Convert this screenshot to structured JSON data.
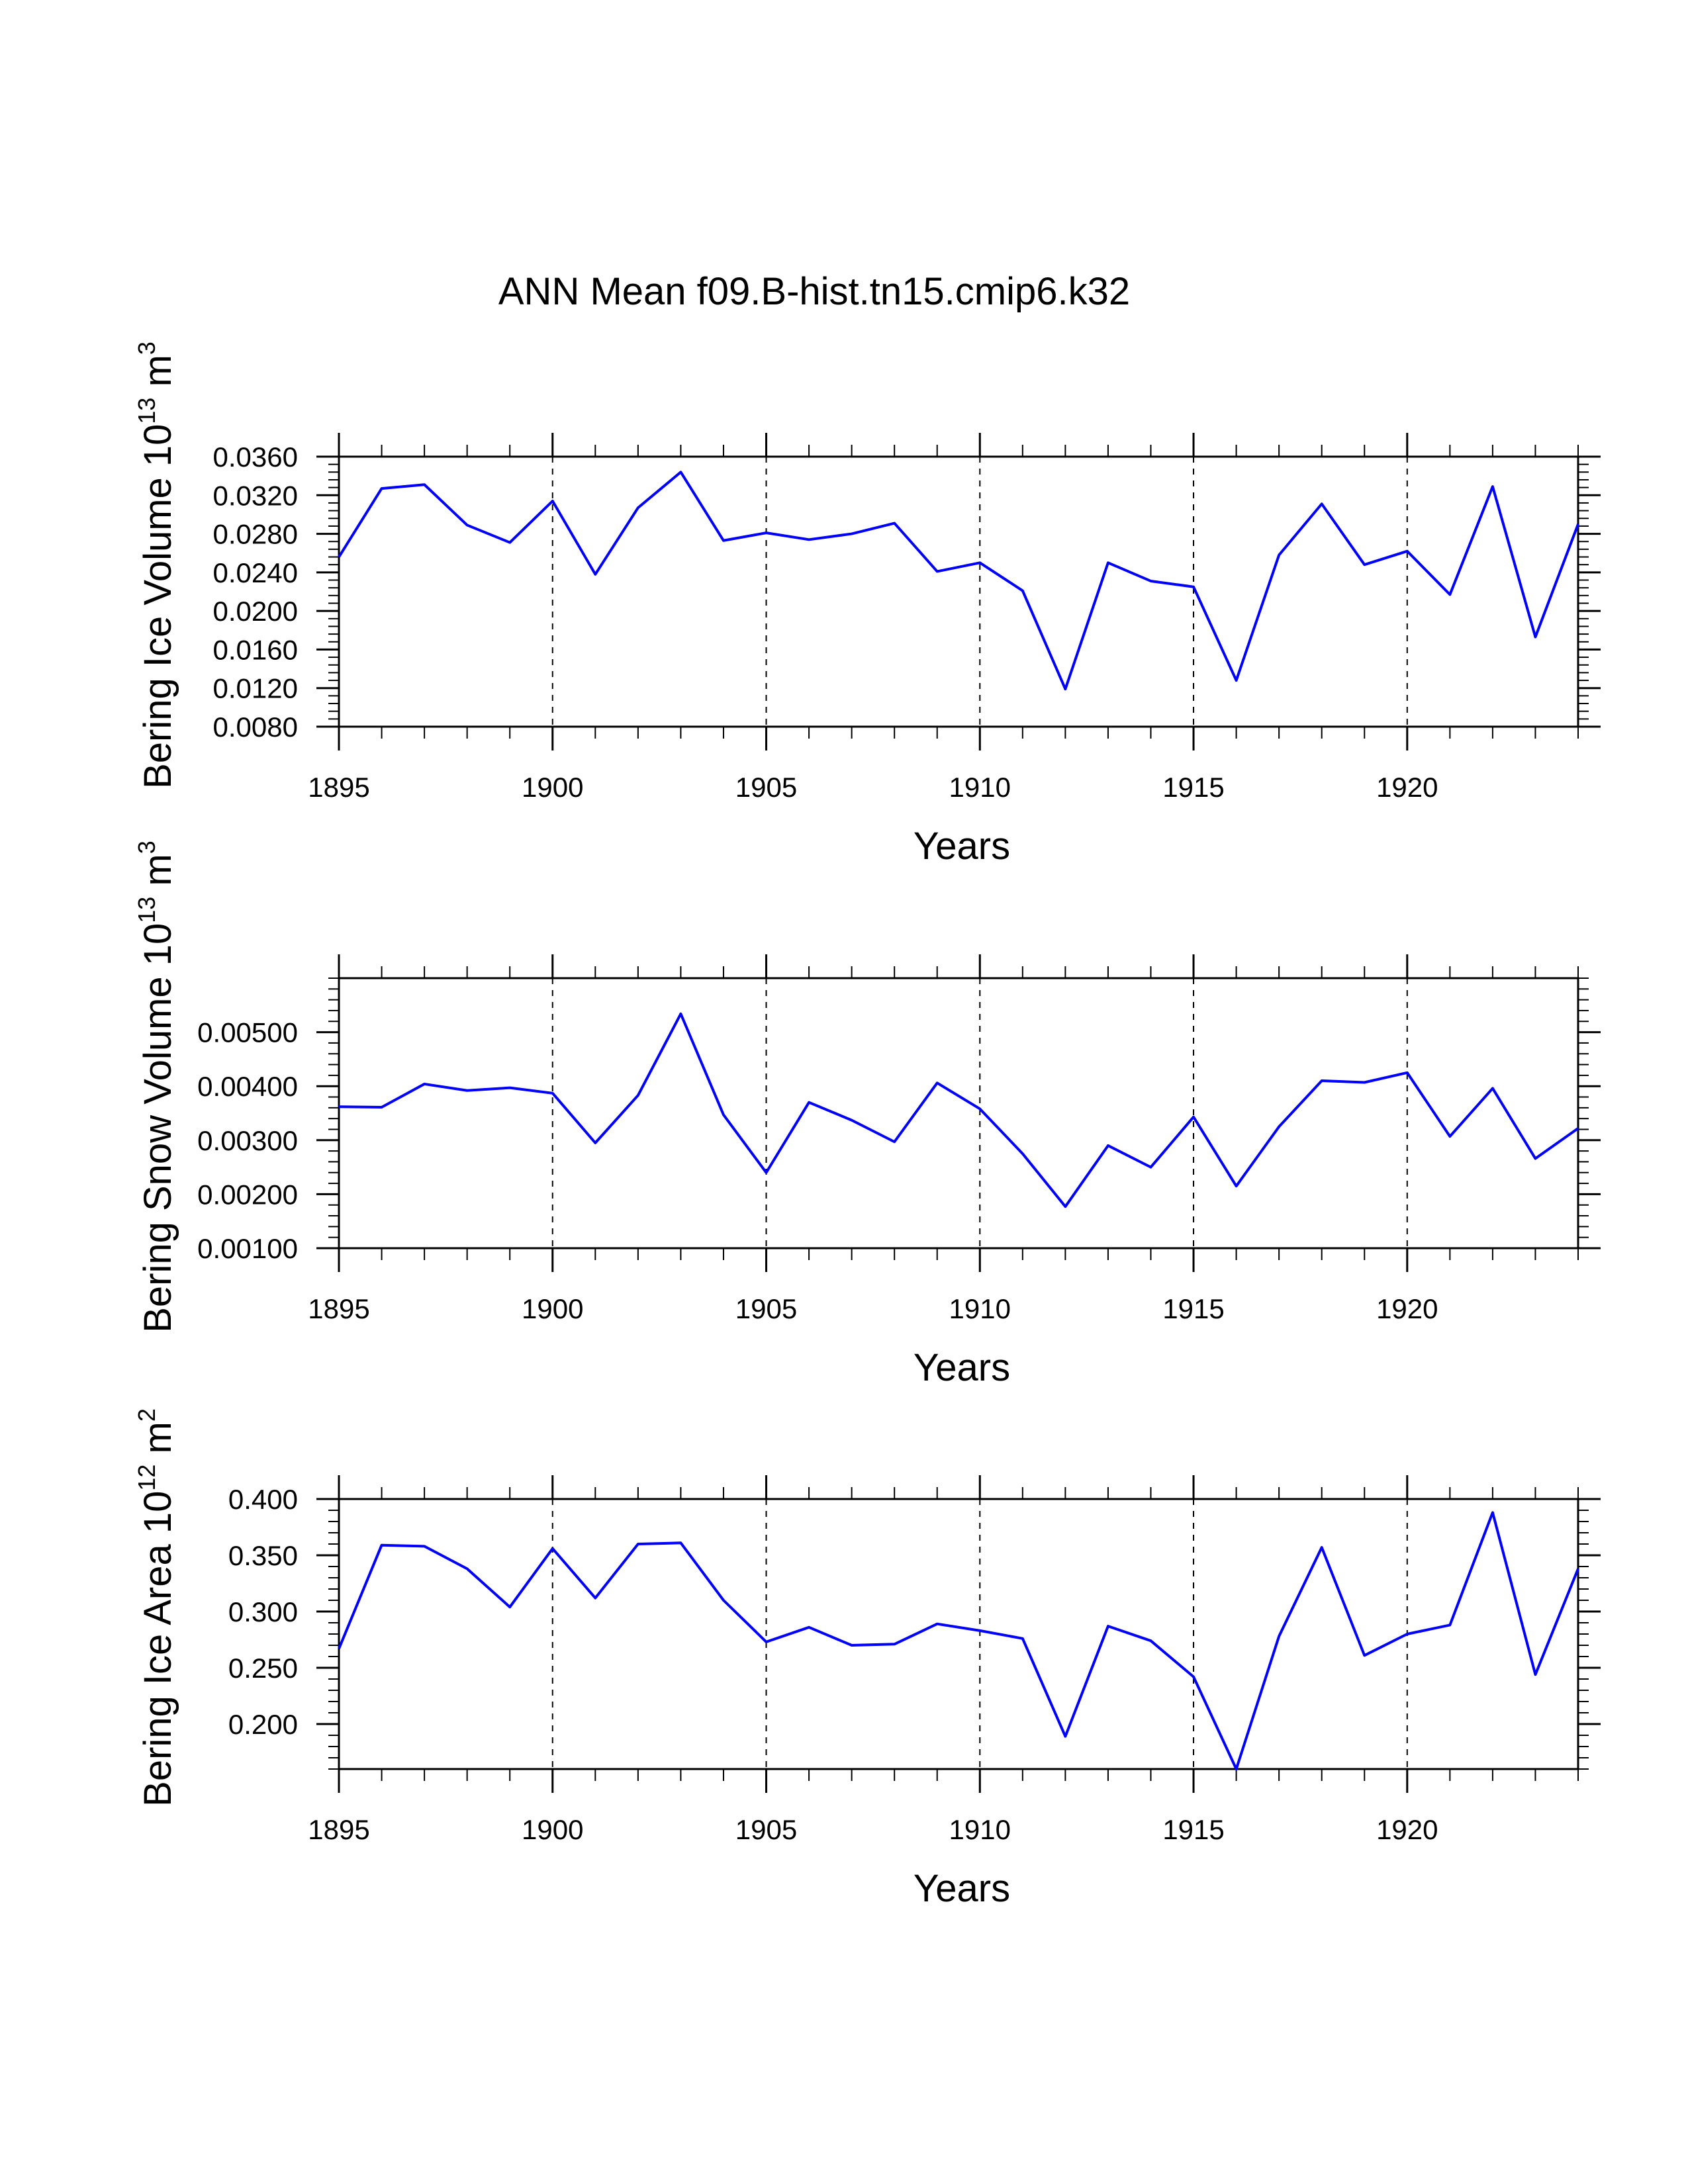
{
  "figure_title": "ANN Mean f09.B-hist.tn15.cmip6.k32",
  "colors": {
    "line": "#0000ff",
    "axes": "#000000",
    "grid": "#000000"
  },
  "chart_data": [
    {
      "type": "line",
      "id": "ice-volume",
      "ylabel": {
        "text": "Bering Ice Volume 10",
        "exponent": "13",
        "unit": " m",
        "unit_exponent": "3"
      },
      "xlabel": "Years",
      "xlim": [
        1895,
        1924
      ],
      "ylim": [
        0.008,
        0.036
      ],
      "x_ticks": [
        1895,
        1900,
        1905,
        1910,
        1915,
        1920
      ],
      "x_tick_labels": [
        "1895",
        "1900",
        "1905",
        "1910",
        "1915",
        "1920"
      ],
      "y_ticks": [
        0.008,
        0.012,
        0.016,
        0.02,
        0.024,
        0.028,
        0.032,
        0.036
      ],
      "y_tick_labels": [
        "0.0080",
        "0.0120",
        "0.0160",
        "0.0200",
        "0.0240",
        "0.0280",
        "0.0320",
        "0.0360"
      ],
      "grid_x": [
        1900,
        1905,
        1910,
        1915,
        1920
      ],
      "x": [
        1895,
        1896,
        1897,
        1898,
        1899,
        1900,
        1901,
        1902,
        1903,
        1904,
        1905,
        1906,
        1907,
        1908,
        1909,
        1910,
        1911,
        1912,
        1913,
        1914,
        1915,
        1916,
        1917,
        1918,
        1919,
        1920,
        1921,
        1922,
        1923,
        1924
      ],
      "series": [
        {
          "name": "Bering Ice Volume",
          "values": [
            0.0256,
            0.0327,
            0.0331,
            0.0289,
            0.0271,
            0.0314,
            0.0238,
            0.0307,
            0.0344,
            0.0273,
            0.0281,
            0.0274,
            0.028,
            0.0291,
            0.0241,
            0.025,
            0.0221,
            0.0119,
            0.025,
            0.0231,
            0.0225,
            0.0128,
            0.0258,
            0.0311,
            0.0248,
            0.0262,
            0.0217,
            0.0329,
            0.0173,
            0.029
          ]
        }
      ]
    },
    {
      "type": "line",
      "id": "snow-volume",
      "ylabel": {
        "text": "Bering Snow Volume 10",
        "exponent": "13",
        "unit": " m",
        "unit_exponent": "3"
      },
      "xlabel": "Years",
      "xlim": [
        1895,
        1924
      ],
      "ylim": [
        0.001,
        0.006
      ],
      "x_ticks": [
        1895,
        1900,
        1905,
        1910,
        1915,
        1920
      ],
      "x_tick_labels": [
        "1895",
        "1900",
        "1905",
        "1910",
        "1915",
        "1920"
      ],
      "y_ticks": [
        0.001,
        0.002,
        0.003,
        0.004,
        0.005
      ],
      "y_tick_labels": [
        "0.00100",
        "0.00200",
        "0.00300",
        "0.00400",
        "0.00500"
      ],
      "grid_x": [
        1900,
        1905,
        1910,
        1915,
        1920
      ],
      "x": [
        1895,
        1896,
        1897,
        1898,
        1899,
        1900,
        1901,
        1902,
        1903,
        1904,
        1905,
        1906,
        1907,
        1908,
        1909,
        1910,
        1911,
        1912,
        1913,
        1914,
        1915,
        1916,
        1917,
        1918,
        1919,
        1920,
        1921,
        1922,
        1923,
        1924
      ],
      "series": [
        {
          "name": "Bering Snow Volume",
          "values": [
            0.00362,
            0.00361,
            0.00404,
            0.00392,
            0.00397,
            0.00387,
            0.00295,
            0.00383,
            0.00534,
            0.00347,
            0.0024,
            0.0037,
            0.00337,
            0.00297,
            0.00406,
            0.00358,
            0.00275,
            0.00177,
            0.0029,
            0.0025,
            0.00343,
            0.00215,
            0.00325,
            0.0041,
            0.00407,
            0.00425,
            0.00307,
            0.00396,
            0.00266,
            0.00322
          ]
        }
      ]
    },
    {
      "type": "line",
      "id": "ice-area",
      "ylabel": {
        "text": "Bering Ice Area 10",
        "exponent": "12",
        "unit": " m",
        "unit_exponent": "2"
      },
      "xlabel": "Years",
      "xlim": [
        1895,
        1924
      ],
      "ylim": [
        0.16,
        0.4
      ],
      "x_ticks": [
        1895,
        1900,
        1905,
        1910,
        1915,
        1920
      ],
      "x_tick_labels": [
        "1895",
        "1900",
        "1905",
        "1910",
        "1915",
        "1920"
      ],
      "y_ticks": [
        0.2,
        0.25,
        0.3,
        0.35,
        0.4
      ],
      "y_tick_labels": [
        "0.200",
        "0.250",
        "0.300",
        "0.350",
        "0.400"
      ],
      "grid_x": [
        1900,
        1905,
        1910,
        1915,
        1920
      ],
      "x": [
        1895,
        1896,
        1897,
        1898,
        1899,
        1900,
        1901,
        1902,
        1903,
        1904,
        1905,
        1906,
        1907,
        1908,
        1909,
        1910,
        1911,
        1912,
        1913,
        1914,
        1915,
        1916,
        1917,
        1918,
        1919,
        1920,
        1921,
        1922,
        1923,
        1924
      ],
      "series": [
        {
          "name": "Bering Ice Area",
          "values": [
            0.267,
            0.359,
            0.358,
            0.338,
            0.304,
            0.356,
            0.312,
            0.36,
            0.361,
            0.31,
            0.273,
            0.286,
            0.27,
            0.271,
            0.289,
            0.283,
            0.276,
            0.189,
            0.287,
            0.274,
            0.242,
            0.16,
            0.278,
            0.357,
            0.261,
            0.28,
            0.288,
            0.388,
            0.244,
            0.338
          ]
        }
      ]
    }
  ]
}
